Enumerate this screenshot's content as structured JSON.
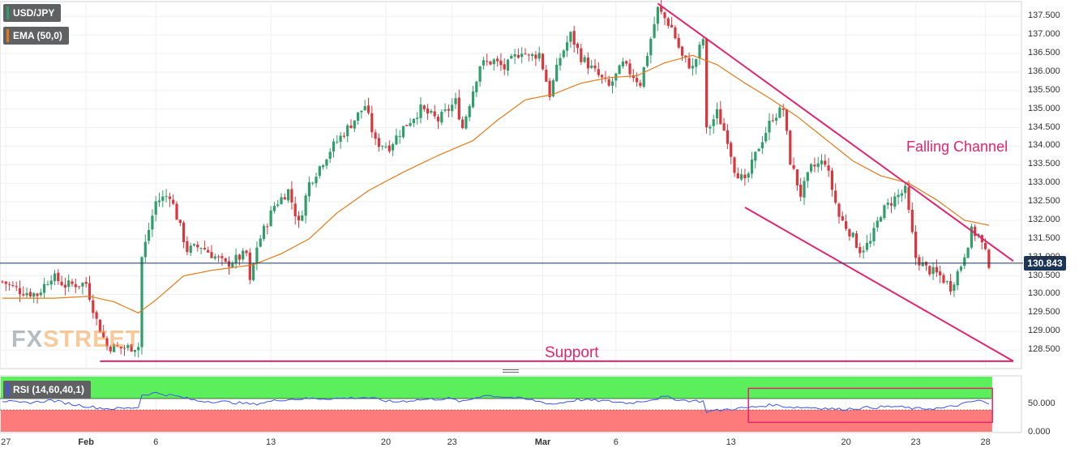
{
  "symbol_label": "USD/JPY",
  "ema_label": "EMA (50,0)",
  "rsi_label": "RSI (14,60,40,1)",
  "current_price": "130.843",
  "annotations": {
    "channel": "Falling Channel",
    "support": "Support"
  },
  "watermark": {
    "part1": "FX",
    "part2": "STREET"
  },
  "colors": {
    "up": "#2e9e6a",
    "down": "#d9363e",
    "ema": "#e07b1a",
    "channel": "#e0256e",
    "rsi_line": "#3a55e8",
    "rsi_overbought": "#5bf05b",
    "rsi_oversold": "#fd7b7b",
    "price_line": "#1d3557"
  },
  "chart_data": {
    "type": "candlestick",
    "ylim": [
      128.0,
      137.9
    ],
    "yticks": [
      "137.500",
      "137.000",
      "136.500",
      "136.000",
      "135.500",
      "135.000",
      "134.500",
      "134.000",
      "133.500",
      "133.000",
      "132.500",
      "132.000",
      "131.500",
      "131.000",
      "130.500",
      "130.000",
      "129.500",
      "129.000",
      "128.500"
    ],
    "ytick_values": [
      137.5,
      137.0,
      136.5,
      136.0,
      135.5,
      135.0,
      134.5,
      134.0,
      133.5,
      133.0,
      132.5,
      132.0,
      131.5,
      131.0,
      130.5,
      130.0,
      129.5,
      129.0,
      128.5
    ],
    "xticks": [
      {
        "label": "27",
        "bar": 1,
        "bold": false
      },
      {
        "label": "Feb",
        "bar": 24,
        "bold": true
      },
      {
        "label": "6",
        "bar": 44,
        "bold": false
      },
      {
        "label": "13",
        "bar": 77,
        "bold": false
      },
      {
        "label": "20",
        "bar": 110,
        "bold": false
      },
      {
        "label": "23",
        "bar": 129,
        "bold": false
      },
      {
        "label": "Mar",
        "bar": 155,
        "bold": true
      },
      {
        "label": "6",
        "bar": 176,
        "bold": false
      },
      {
        "label": "13",
        "bar": 209,
        "bold": false
      },
      {
        "label": "20",
        "bar": 242,
        "bold": false
      },
      {
        "label": "23",
        "bar": 262,
        "bold": false
      },
      {
        "label": "28",
        "bar": 282,
        "bold": false
      }
    ],
    "bars": 284,
    "price_anchors": [
      [
        0,
        130.35
      ],
      [
        5,
        130.1
      ],
      [
        10,
        130.0
      ],
      [
        14,
        130.5
      ],
      [
        18,
        130.25
      ],
      [
        24,
        130.3
      ],
      [
        27,
        129.3
      ],
      [
        30,
        128.6
      ],
      [
        34,
        128.55
      ],
      [
        39,
        128.6
      ],
      [
        40,
        131.0
      ],
      [
        44,
        132.5
      ],
      [
        48,
        132.7
      ],
      [
        53,
        131.2
      ],
      [
        57,
        131.3
      ],
      [
        64,
        130.8
      ],
      [
        70,
        131.1
      ],
      [
        71,
        130.3
      ],
      [
        73,
        131.3
      ],
      [
        78,
        132.4
      ],
      [
        82,
        132.8
      ],
      [
        85,
        131.9
      ],
      [
        88,
        133.0
      ],
      [
        94,
        133.9
      ],
      [
        100,
        134.6
      ],
      [
        104,
        135.1
      ],
      [
        107,
        134.1
      ],
      [
        111,
        134.0
      ],
      [
        115,
        134.5
      ],
      [
        120,
        135.0
      ],
      [
        125,
        134.7
      ],
      [
        130,
        135.2
      ],
      [
        132,
        134.5
      ],
      [
        137,
        136.2
      ],
      [
        141,
        136.3
      ],
      [
        144,
        136.1
      ],
      [
        149,
        136.6
      ],
      [
        151,
        136.4
      ],
      [
        154,
        136.5
      ],
      [
        157,
        135.4
      ],
      [
        160,
        136.4
      ],
      [
        163,
        137.0
      ],
      [
        166,
        136.4
      ],
      [
        170,
        136.0
      ],
      [
        174,
        135.6
      ],
      [
        178,
        136.2
      ],
      [
        183,
        135.7
      ],
      [
        185,
        136.5
      ],
      [
        188,
        137.7
      ],
      [
        192,
        137.2
      ],
      [
        195,
        136.4
      ],
      [
        198,
        136.1
      ],
      [
        201,
        136.9
      ],
      [
        202,
        134.4
      ],
      [
        205,
        134.9
      ],
      [
        208,
        134.2
      ],
      [
        210,
        133.4
      ],
      [
        213,
        133.0
      ],
      [
        217,
        134.0
      ],
      [
        221,
        134.8
      ],
      [
        224,
        135.0
      ],
      [
        226,
        133.6
      ],
      [
        229,
        132.7
      ],
      [
        232,
        133.4
      ],
      [
        236,
        133.6
      ],
      [
        240,
        132.1
      ],
      [
        243,
        131.7
      ],
      [
        246,
        131.2
      ],
      [
        249,
        131.4
      ],
      [
        252,
        132.2
      ],
      [
        256,
        132.6
      ],
      [
        259,
        132.8
      ],
      [
        262,
        131.0
      ],
      [
        265,
        130.7
      ],
      [
        269,
        130.5
      ],
      [
        272,
        130.2
      ],
      [
        275,
        130.8
      ],
      [
        278,
        131.7
      ],
      [
        280,
        131.6
      ],
      [
        283,
        130.84
      ]
    ],
    "ema_anchors": [
      [
        0,
        129.9
      ],
      [
        15,
        129.9
      ],
      [
        25,
        129.95
      ],
      [
        32,
        129.8
      ],
      [
        39,
        129.5
      ],
      [
        44,
        129.85
      ],
      [
        52,
        130.5
      ],
      [
        60,
        130.65
      ],
      [
        72,
        130.8
      ],
      [
        80,
        131.1
      ],
      [
        88,
        131.5
      ],
      [
        96,
        132.2
      ],
      [
        105,
        132.8
      ],
      [
        115,
        133.3
      ],
      [
        125,
        133.75
      ],
      [
        135,
        134.15
      ],
      [
        142,
        134.7
      ],
      [
        150,
        135.25
      ],
      [
        158,
        135.4
      ],
      [
        166,
        135.7
      ],
      [
        174,
        135.85
      ],
      [
        182,
        135.9
      ],
      [
        190,
        136.25
      ],
      [
        198,
        136.45
      ],
      [
        205,
        136.2
      ],
      [
        213,
        135.7
      ],
      [
        220,
        135.3
      ],
      [
        228,
        134.8
      ],
      [
        236,
        134.2
      ],
      [
        244,
        133.6
      ],
      [
        252,
        133.2
      ],
      [
        260,
        133.0
      ],
      [
        268,
        132.55
      ],
      [
        276,
        132.0
      ],
      [
        284,
        131.85
      ]
    ],
    "falling_channel": {
      "upper": [
        [
          188,
          137.85
        ],
        [
          290,
          130.9
        ]
      ],
      "lower": [
        [
          213,
          132.35
        ],
        [
          290,
          128.2
        ]
      ]
    },
    "support_level": 128.2,
    "rsi": {
      "ylim": [
        0,
        100
      ],
      "yticks": [
        "50.000",
        "0.000"
      ],
      "ytick_values": [
        50,
        0
      ],
      "overbought": 60,
      "oversold": 40,
      "anchors": [
        [
          0,
          56
        ],
        [
          5,
          52
        ],
        [
          10,
          54
        ],
        [
          14,
          57
        ],
        [
          20,
          50
        ],
        [
          27,
          44
        ],
        [
          31,
          42
        ],
        [
          36,
          43
        ],
        [
          39,
          45
        ],
        [
          40,
          66
        ],
        [
          44,
          70
        ],
        [
          50,
          64
        ],
        [
          56,
          56
        ],
        [
          64,
          54
        ],
        [
          72,
          50
        ],
        [
          80,
          58
        ],
        [
          88,
          60
        ],
        [
          96,
          60
        ],
        [
          104,
          62
        ],
        [
          112,
          54
        ],
        [
          120,
          58
        ],
        [
          128,
          60
        ],
        [
          132,
          54
        ],
        [
          138,
          66
        ],
        [
          146,
          62
        ],
        [
          152,
          57
        ],
        [
          158,
          50
        ],
        [
          165,
          58
        ],
        [
          172,
          56
        ],
        [
          180,
          52
        ],
        [
          186,
          58
        ],
        [
          190,
          63
        ],
        [
          195,
          57
        ],
        [
          201,
          55
        ],
        [
          202,
          37
        ],
        [
          208,
          41
        ],
        [
          214,
          44
        ],
        [
          221,
          49
        ],
        [
          226,
          45
        ],
        [
          233,
          44
        ],
        [
          240,
          41
        ],
        [
          248,
          44
        ],
        [
          256,
          46
        ],
        [
          262,
          42
        ],
        [
          270,
          43
        ],
        [
          276,
          51
        ],
        [
          280,
          57
        ],
        [
          283,
          50
        ]
      ],
      "highlight_box": {
        "from_bar": 214,
        "to_bar": 284,
        "rsi_low": 18,
        "rsi_high": 78
      }
    }
  }
}
